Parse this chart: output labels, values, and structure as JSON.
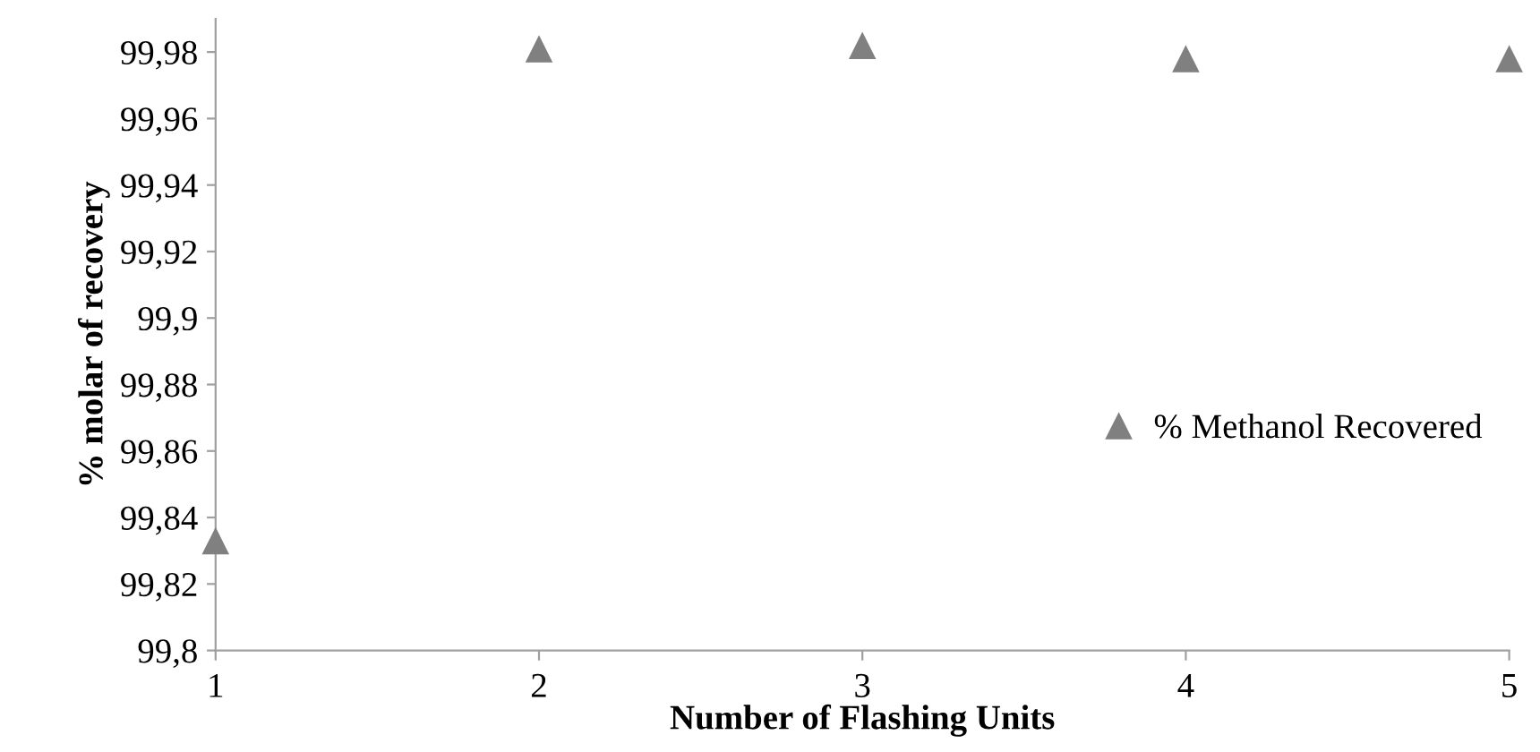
{
  "chart_data": {
    "type": "scatter",
    "xlabel": "Number of Flashing Units",
    "ylabel": "% molar of recovery",
    "x": [
      1,
      2,
      3,
      4,
      5
    ],
    "series": [
      {
        "name": "% Methanol Recovered",
        "color": "#808080",
        "values": [
          99.833,
          99.981,
          99.982,
          99.978,
          99.978
        ]
      }
    ],
    "marker": "triangle",
    "legend": "right",
    "grid": false,
    "xlim": [
      1,
      5
    ],
    "xticks": [
      1,
      2,
      3,
      4,
      5
    ],
    "ylim": [
      99.8,
      99.99
    ],
    "yticks": [
      {
        "value": 99.8,
        "label": "99,8"
      },
      {
        "value": 99.82,
        "label": "99,82"
      },
      {
        "value": 99.84,
        "label": "99,84"
      },
      {
        "value": 99.86,
        "label": "99,86"
      },
      {
        "value": 99.88,
        "label": "99,88"
      },
      {
        "value": 99.9,
        "label": "99,9"
      },
      {
        "value": 99.92,
        "label": "99,92"
      },
      {
        "value": 99.94,
        "label": "99,94"
      },
      {
        "value": 99.96,
        "label": "99,96"
      },
      {
        "value": 99.98,
        "label": "99,98"
      }
    ]
  }
}
